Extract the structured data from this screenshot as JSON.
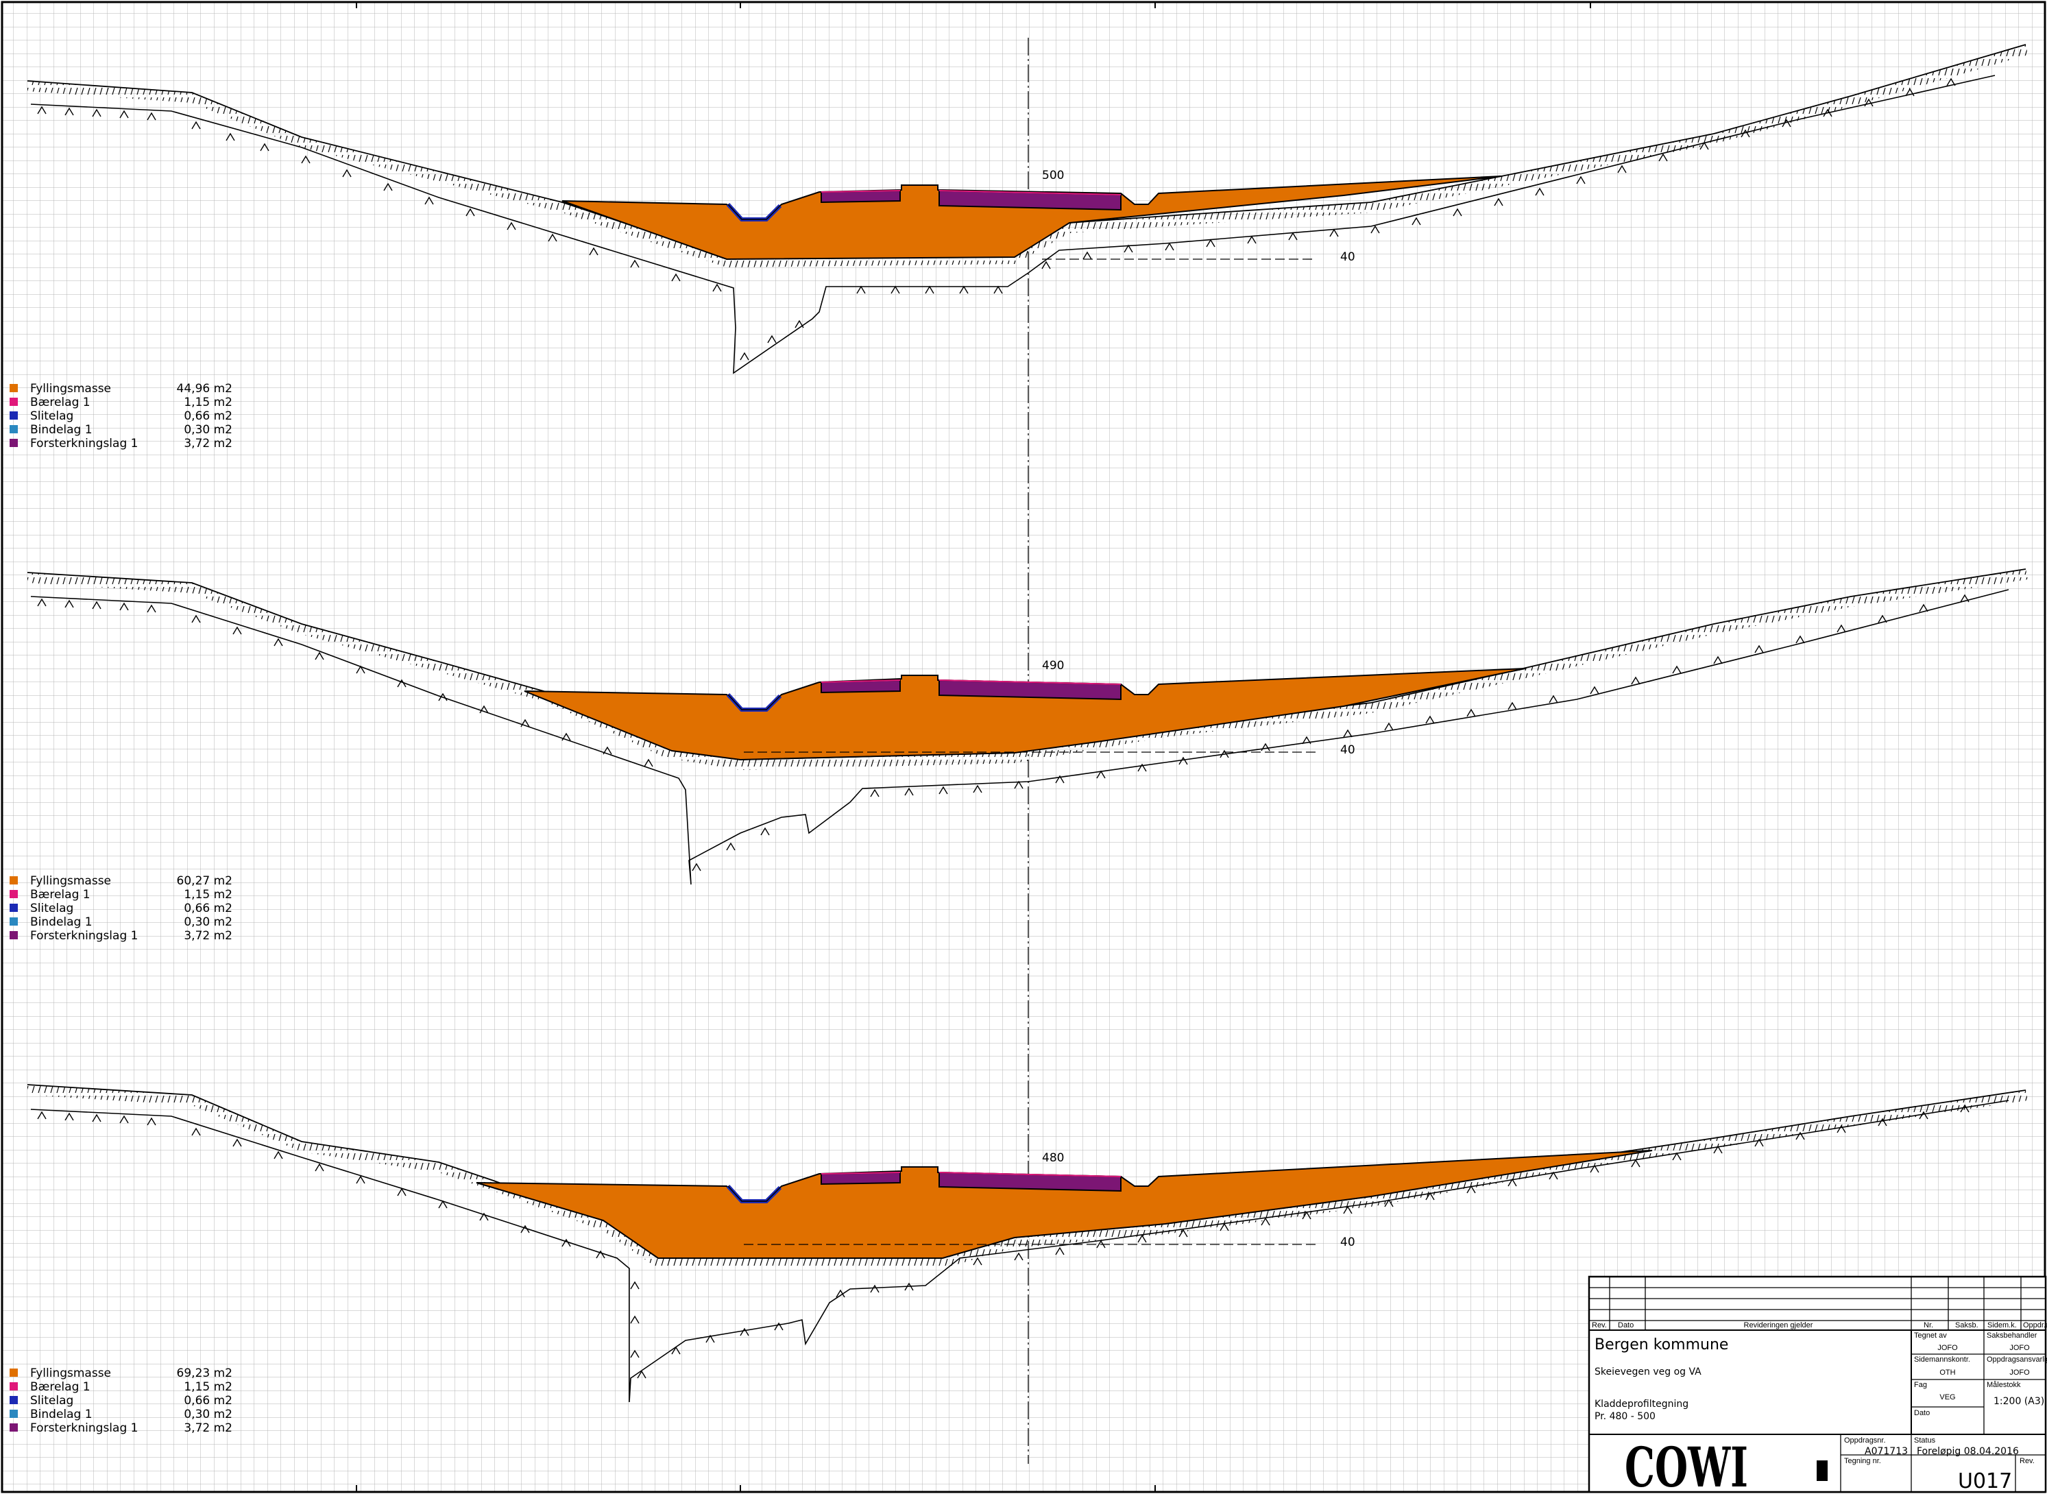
{
  "colors": {
    "fill_mass": "#e07000",
    "baerelag": "#e0187a",
    "slitelag": "#1c2ab4",
    "bindelag": "#2a88c0",
    "forsterkningslag": "#7c1674",
    "grid": "#b4b4b4"
  },
  "sections": [
    {
      "station": "500",
      "elevation_label": "40",
      "legend": [
        {
          "label": "Fyllingsmasse",
          "value": "44,96 m2",
          "color": "#e07000"
        },
        {
          "label": "Bærelag 1",
          "value": "1,15 m2",
          "color": "#e0187a"
        },
        {
          "label": "Slitelag",
          "value": "0,66 m2",
          "color": "#1c2ab4"
        },
        {
          "label": "Bindelag 1",
          "value": "0,30 m2",
          "color": "#2a88c0"
        },
        {
          "label": "Forsterkningslag 1",
          "value": "3,72 m2",
          "color": "#7c1674"
        }
      ]
    },
    {
      "station": "490",
      "elevation_label": "40",
      "legend": [
        {
          "label": "Fyllingsmasse",
          "value": "60,27 m2",
          "color": "#e07000"
        },
        {
          "label": "Bærelag 1",
          "value": "1,15 m2",
          "color": "#e0187a"
        },
        {
          "label": "Slitelag",
          "value": "0,66 m2",
          "color": "#1c2ab4"
        },
        {
          "label": "Bindelag 1",
          "value": "0,30 m2",
          "color": "#2a88c0"
        },
        {
          "label": "Forsterkningslag 1",
          "value": "3,72 m2",
          "color": "#7c1674"
        }
      ]
    },
    {
      "station": "480",
      "elevation_label": "40",
      "legend": [
        {
          "label": "Fyllingsmasse",
          "value": "69,23 m2",
          "color": "#e07000"
        },
        {
          "label": "Bærelag 1",
          "value": "1,15 m2",
          "color": "#e0187a"
        },
        {
          "label": "Slitelag",
          "value": "0,66 m2",
          "color": "#1c2ab4"
        },
        {
          "label": "Bindelag 1",
          "value": "0,30 m2",
          "color": "#2a88c0"
        },
        {
          "label": "Forsterkningslag 1",
          "value": "3,72 m2",
          "color": "#7c1674"
        }
      ]
    }
  ],
  "title_block": {
    "rev_headers": {
      "rev": "Rev.",
      "dato": "Dato",
      "revision_applies": "Revideringen gjelder",
      "nr": "Nr.",
      "saksb": "Saksb.",
      "sidem": "Sidem.k.",
      "oppdr": "Oppdr.a"
    },
    "client": "Bergen kommune",
    "project": "Skeievegen veg og VA",
    "drawing_title_1": "Kladdeprofiltegning",
    "drawing_title_2": "Pr. 480 - 500",
    "tegnet_av_label": "Tegnet av",
    "tegnet_av": "JOFO",
    "saksbehandler_label": "Saksbehandler",
    "saksbehandler": "JOFO",
    "sidemannskontr_label": "Sidemannskontr.",
    "sidemannskontr": "OTH",
    "oppdragsansvarlig_label": "Oppdragsansvarlig",
    "oppdragsansvarlig": "JOFO",
    "fag_label": "Fag",
    "fag": "VEG",
    "malestokk_label": "Målestokk",
    "malestokk": "1:200 (A3)",
    "dato_label": "Dato",
    "oppdragsnr_label": "Oppdragsnr.",
    "oppdragsnr": "A071713",
    "status_label": "Status",
    "status": "Foreløpig 08.04.2016",
    "tegning_nr_label": "Tegning nr.",
    "tegning_nr": "U017",
    "rev_label": "Rev.",
    "logo": "COWI"
  }
}
